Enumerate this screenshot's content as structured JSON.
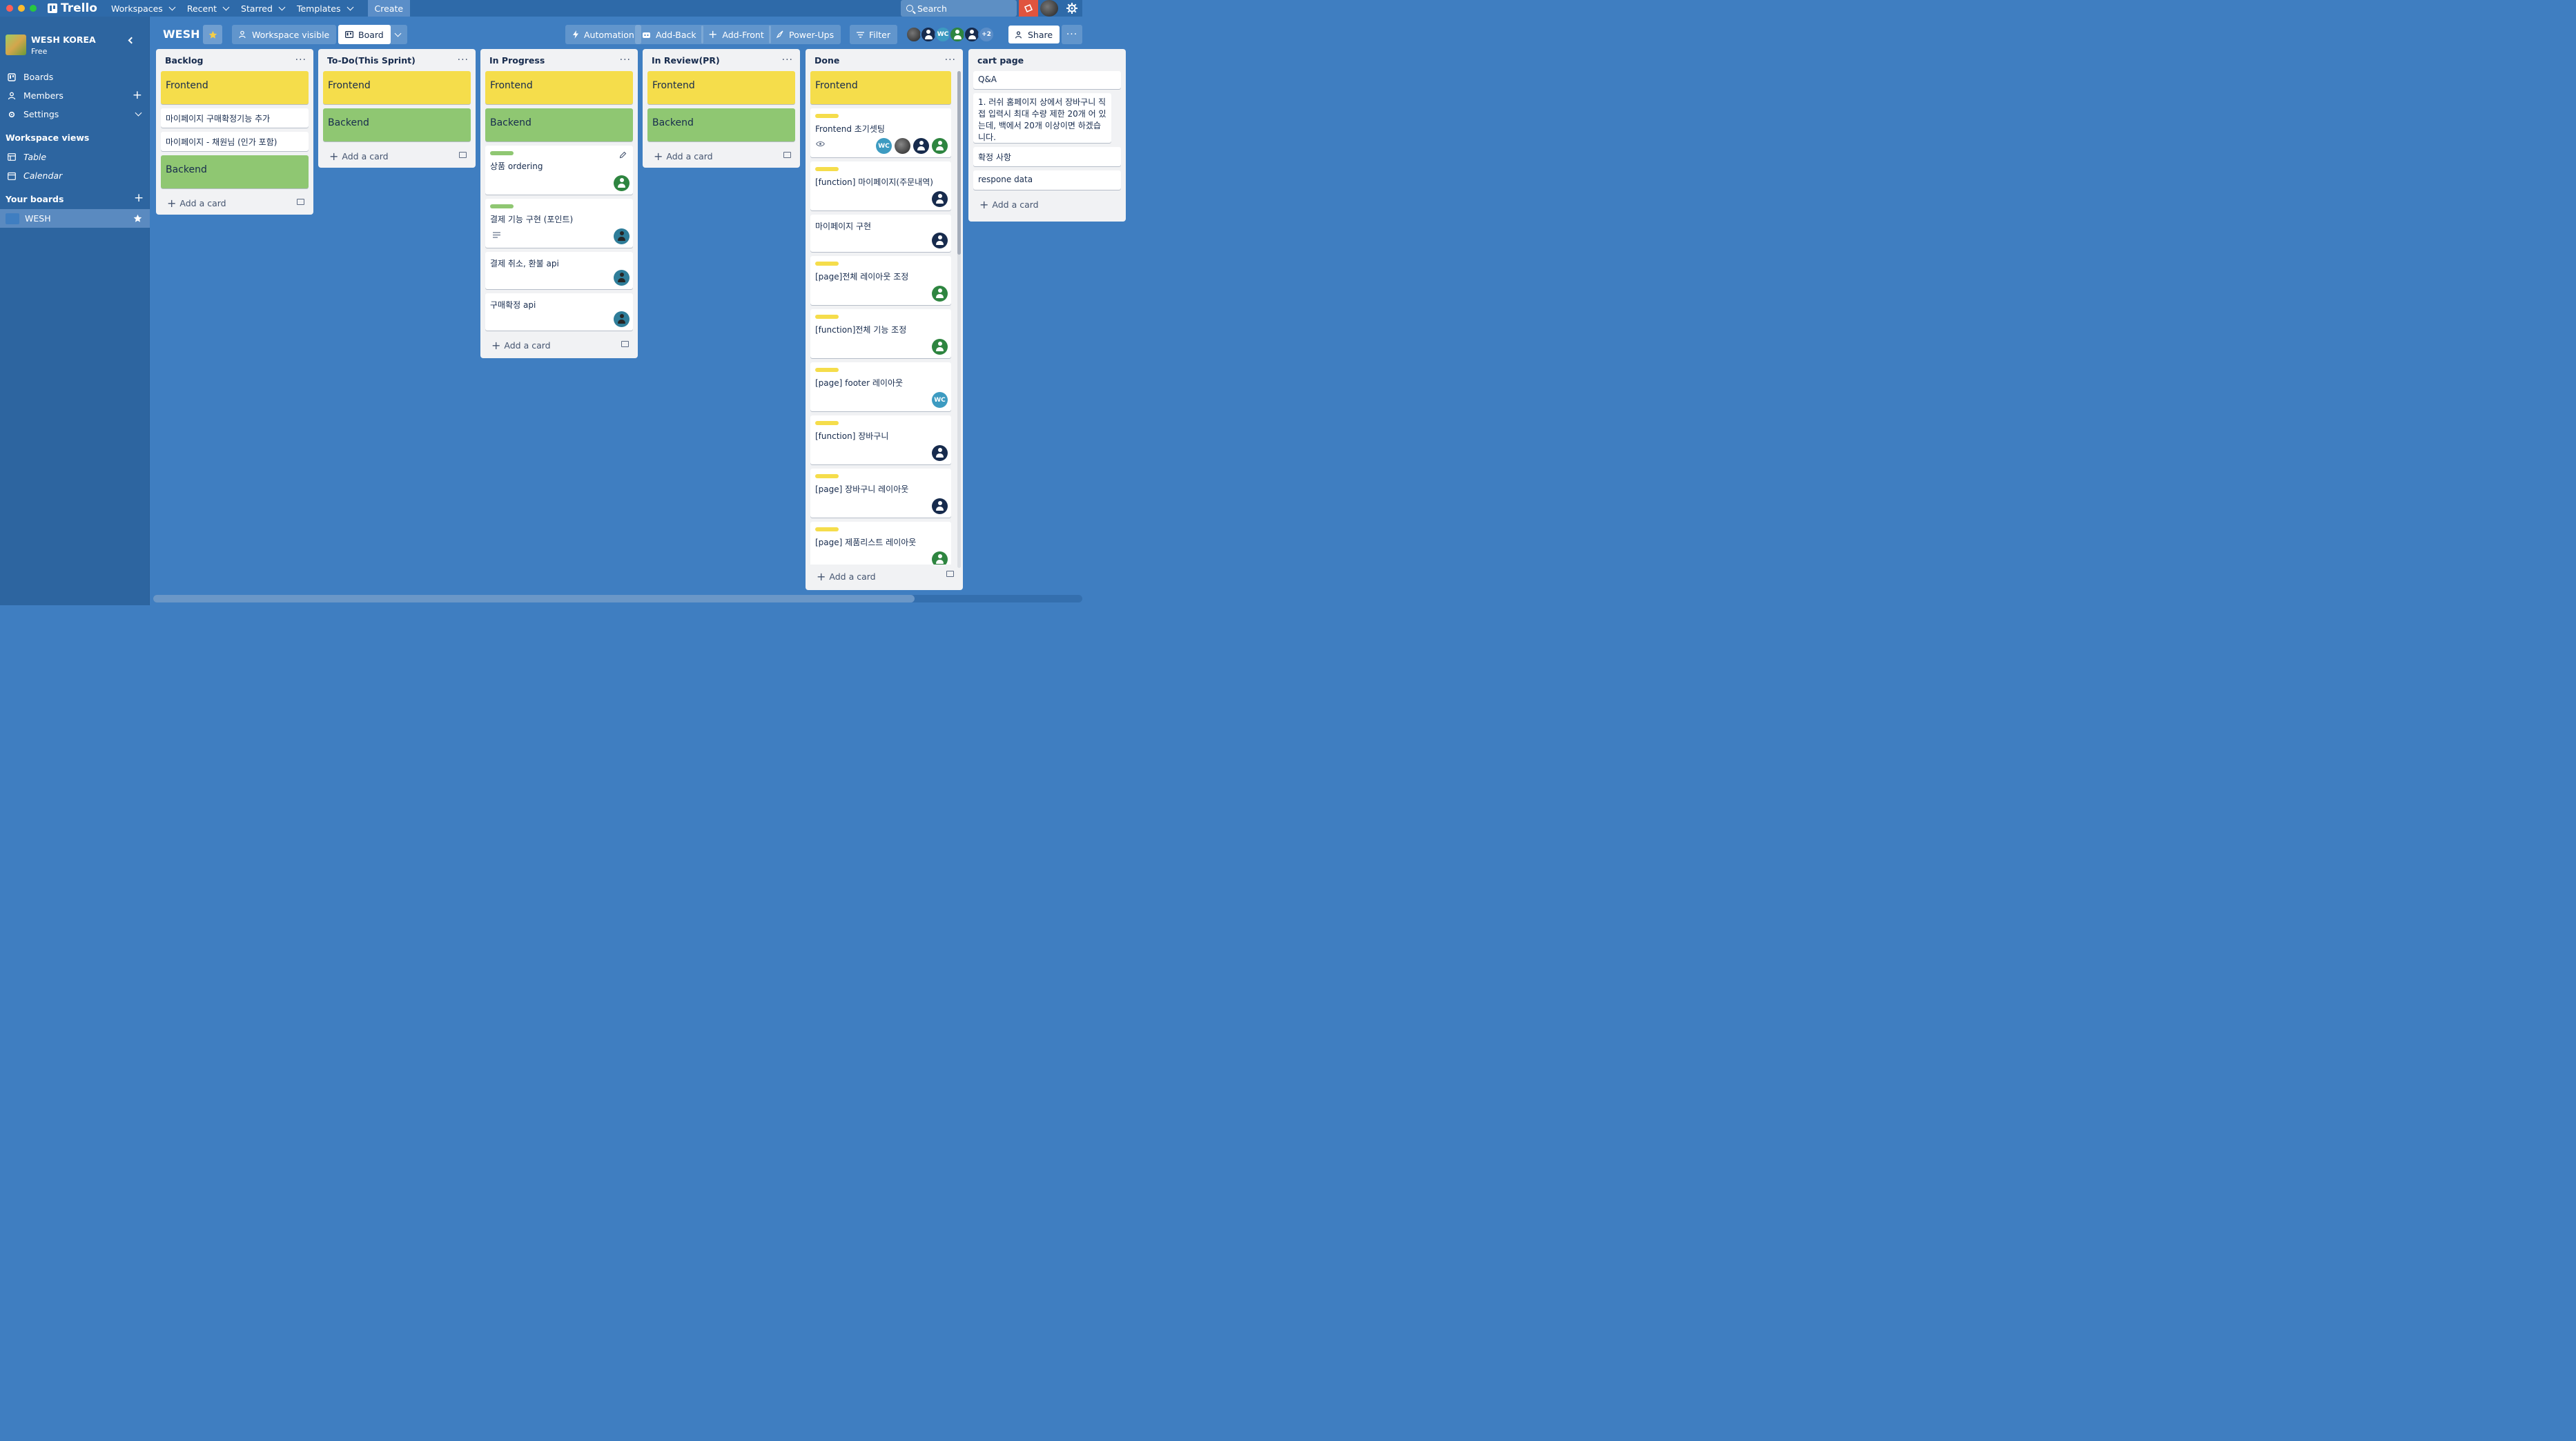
{
  "topbar": {
    "app_name": "Trello",
    "nav": [
      "Workspaces",
      "Recent",
      "Starred",
      "Templates"
    ],
    "create_label": "Create",
    "search_placeholder": "Search"
  },
  "sidebar": {
    "workspace_name": "WESH KOREA",
    "workspace_plan": "Free",
    "items": [
      {
        "label": "Boards",
        "icon": "board-icon"
      },
      {
        "label": "Members",
        "icon": "members-icon"
      },
      {
        "label": "Settings",
        "icon": "gear-icon"
      }
    ],
    "views_heading": "Workspace views",
    "views": [
      {
        "label": "Table",
        "icon": "table-icon"
      },
      {
        "label": "Calendar",
        "icon": "calendar-icon"
      }
    ],
    "your_boards_heading": "Your boards",
    "boards": [
      {
        "label": "WESH"
      }
    ]
  },
  "board_header": {
    "title": "WESH",
    "visibility_label": "Workspace visible",
    "view_label": "Board",
    "automation_label": "Automation",
    "add_back_label": "Add-Back",
    "add_front_label": "Add-Front",
    "powerups_label": "Power-Ups",
    "filter_label": "Filter",
    "members_extra": "+2",
    "share_label": "Share"
  },
  "lists": {
    "backlog": {
      "title": "Backlog",
      "cards": [
        "Frontend",
        "마이페이지 구매확정기능 추가",
        "마이페이지 - 채원님 (인가 포함)",
        "Backend"
      ],
      "add_label": "Add a card"
    },
    "todo": {
      "title": "To-Do(This Sprint)",
      "cards": [
        "Frontend",
        "Backend"
      ],
      "add_label": "Add a card"
    },
    "inprogress": {
      "title": "In Progress",
      "cards": [
        "Frontend",
        "Backend",
        "상품 ordering",
        "결제 기능 구현 (포인트)",
        "결제 취소, 환불 api",
        "구매확정 api"
      ],
      "add_label": "Add a card"
    },
    "inreview": {
      "title": "In Review(PR)",
      "cards": [
        "Frontend",
        "Backend"
      ],
      "add_label": "Add a card"
    },
    "done": {
      "title": "Done",
      "cards": [
        "Frontend",
        "Frontend 초기셋팅",
        "[function] 마이페이지(주문내역)",
        "마이페이지 구현",
        "[page]전체 레이아웃 조정",
        "[function]전체 기능 조정",
        "[page] footer 레이아웃",
        "[function] 장바구니",
        "[page] 장바구니 레이아웃",
        "[page] 제품리스트 레이아웃"
      ],
      "add_label": "Add a card"
    },
    "cart": {
      "title": "cart page",
      "cards": [
        "Q&A",
        "1. 러쉬 홈페이지 상에서 장바구니 직접 입력시 최대 수량 제한 20개 어 있는데, 백에서 20개 이상이면 하겠습니다.",
        "확정 사항",
        "respone data"
      ],
      "add_label": "Add a card"
    }
  },
  "avatars": {
    "wc": "WC"
  },
  "colors": {
    "board_bg": "#3f7ec1",
    "label_yellow": "#f5dd4b",
    "label_green": "#8fc772",
    "notification": "#e0543e"
  }
}
